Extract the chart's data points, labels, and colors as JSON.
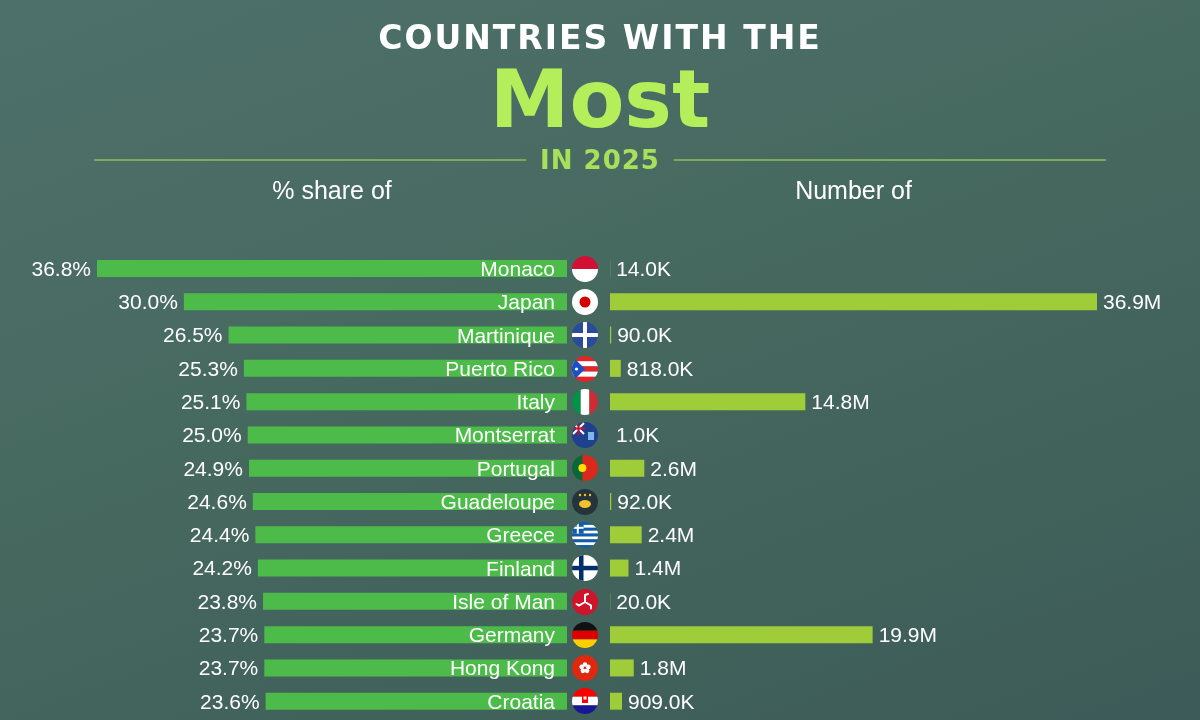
{
  "chart_data": [
    {
      "type": "bar",
      "orientation": "horizontal",
      "title": "COUNTRIES WITH THE",
      "subtitle": "Most",
      "annotations": [
        "IN 2025"
      ],
      "xlabel": "% share of",
      "categories": [
        "Monaco",
        "Japan",
        "Martinique",
        "Puerto Rico",
        "Italy",
        "Montserrat",
        "Portugal",
        "Guadeloupe",
        "Greece",
        "Finland",
        "Isle of Man",
        "Germany",
        "Hong Kong",
        "Croatia"
      ],
      "values": [
        36.8,
        30.0,
        26.5,
        25.3,
        25.1,
        25.0,
        24.9,
        24.6,
        24.4,
        24.2,
        23.8,
        23.7,
        23.7,
        23.6
      ],
      "value_labels": [
        "36.8%",
        "30.0%",
        "26.5%",
        "25.3%",
        "25.1%",
        "25.0%",
        "24.9%",
        "24.6%",
        "24.4%",
        "24.2%",
        "23.8%",
        "23.7%",
        "23.7%",
        "23.6%"
      ],
      "color": "#4cbb4a",
      "xlim": [
        36.8,
        0
      ],
      "tick_labels": "y"
    },
    {
      "type": "bar",
      "orientation": "horizontal",
      "xlabel": "Number of",
      "categories": [
        null,
        null,
        null,
        null,
        null,
        null,
        null,
        null,
        null,
        null,
        null,
        null,
        null,
        null
      ],
      "values": [
        14000,
        36900000,
        90000,
        818000,
        14800000,
        1000,
        2600000,
        92000,
        2400000,
        1400000,
        20000,
        19900000,
        1800000,
        909000
      ],
      "value_labels": [
        "14.0K",
        "36.9M",
        "90.0K",
        "818.0K",
        "14.8M",
        "1.0K",
        "2.6M",
        "92.0K",
        "2.4M",
        "1.4M",
        "20.0K",
        "19.9M",
        "1.8M",
        "909.0K"
      ],
      "color": "#9fcd3a",
      "xlim": [
        0,
        36900000
      ],
      "tick_labels": false
    }
  ]
}
